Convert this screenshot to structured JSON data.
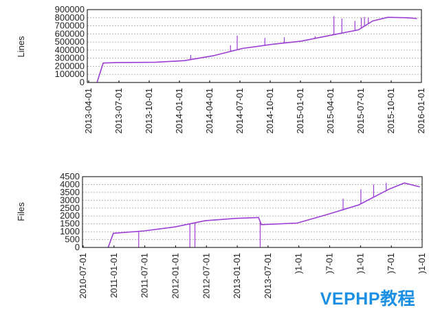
{
  "chart_data": [
    {
      "type": "line",
      "ylabel": "Lines",
      "ylim": [
        0,
        900000
      ],
      "yticks": [
        0,
        100000,
        200000,
        300000,
        400000,
        500000,
        600000,
        700000,
        800000,
        900000
      ],
      "xrange": [
        "2013-03-01",
        "2016-01-15"
      ],
      "xticks": [
        "2013-04-01",
        "2013-07-01",
        "2013-10-01",
        "2014-01-01",
        "2014-04-01",
        "2014-07-01",
        "2014-10-01",
        "2015-01-01",
        "2015-04-01",
        "2015-07-01",
        "2015-10-01",
        "2016-01-01"
      ],
      "series_color": "#9b3dd6",
      "x": [
        "2013-04-01",
        "2013-04-20",
        "2013-06-01",
        "2013-10-01",
        "2014-01-01",
        "2014-04-01",
        "2014-07-01",
        "2014-10-01",
        "2015-01-01",
        "2015-04-01",
        "2015-07-01",
        "2015-08-15",
        "2015-10-01",
        "2015-12-01",
        "2016-01-01"
      ],
      "values": [
        5000,
        240000,
        245000,
        250000,
        270000,
        330000,
        420000,
        470000,
        510000,
        580000,
        650000,
        760000,
        805000,
        800000,
        790000
      ],
      "spikes": [
        {
          "x": "2014-01-20",
          "to": 340000
        },
        {
          "x": "2014-05-25",
          "to": 460000
        },
        {
          "x": "2014-06-15",
          "to": 580000
        },
        {
          "x": "2014-09-10",
          "to": 550000
        },
        {
          "x": "2014-11-10",
          "to": 560000
        },
        {
          "x": "2015-02-15",
          "to": 570000
        },
        {
          "x": "2015-04-15",
          "to": 820000
        },
        {
          "x": "2015-05-10",
          "to": 790000
        },
        {
          "x": "2015-06-20",
          "to": 760000
        },
        {
          "x": "2015-07-10",
          "to": 800000
        },
        {
          "x": "2015-07-20",
          "to": 810000
        },
        {
          "x": "2015-08-01",
          "to": 800000
        }
      ]
    },
    {
      "type": "line",
      "ylabel": "Files",
      "ylim": [
        0,
        4500
      ],
      "yticks": [
        0,
        500,
        1000,
        1500,
        2000,
        2500,
        3000,
        3500,
        4000,
        4500
      ],
      "xrange": [
        "2010-07-01",
        "2016-01-15"
      ],
      "xticks": [
        "2010-07-01",
        "2011-01-01",
        "2011-07-01",
        "2012-01-01",
        "2012-07-01",
        "2013-01-01",
        "2013-07-01",
        ")1-01",
        ")7-01",
        ")1-01",
        ")7-01",
        ")1-01"
      ],
      "series_color": "#9b3dd6",
      "x": [
        "2010-12-01",
        "2011-01-01",
        "2011-07-01",
        "2012-01-01",
        "2012-07-01",
        "2013-01-01",
        "2013-05-15",
        "2013-06-01",
        "2014-01-01",
        "2014-07-01",
        "2015-01-01",
        "2015-07-01",
        "2015-10-01",
        "2016-01-01"
      ],
      "values": [
        0,
        900,
        1050,
        1300,
        1700,
        1850,
        1900,
        1450,
        1550,
        2100,
        2700,
        3700,
        4100,
        3850
      ],
      "spikes": [
        {
          "x": "2011-06-01",
          "to": 0
        },
        {
          "x": "2012-04-01",
          "to": 0
        },
        {
          "x": "2012-05-01",
          "to": 0
        },
        {
          "x": "2013-05-25",
          "to": 0
        },
        {
          "x": "2014-10-01",
          "to": 3100
        },
        {
          "x": "2015-01-15",
          "to": 3700
        },
        {
          "x": "2015-04-01",
          "to": 4000
        },
        {
          "x": "2015-06-15",
          "to": 4100
        }
      ]
    }
  ],
  "watermark": "VEPHP教程"
}
